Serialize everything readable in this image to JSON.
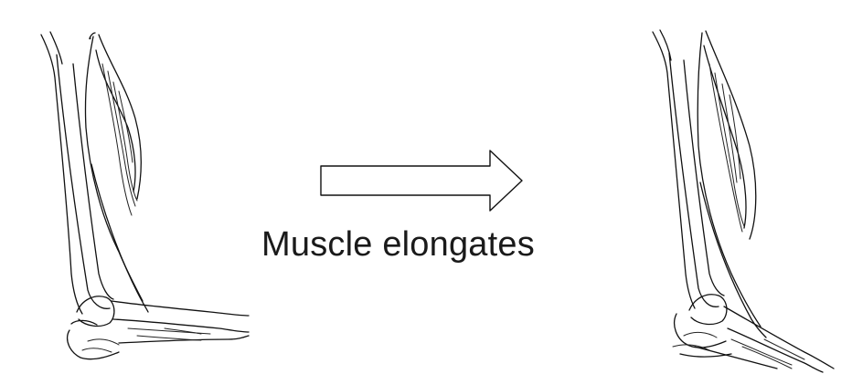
{
  "caption": {
    "text": "Muscle elongates"
  },
  "arrow": {
    "direction": "right",
    "style": "outline"
  },
  "panels": [
    {
      "icon": "flexed-arm-icon"
    },
    {
      "icon": "extended-arm-icon"
    }
  ],
  "colors": {
    "line": "#111111",
    "background": "#ffffff"
  }
}
